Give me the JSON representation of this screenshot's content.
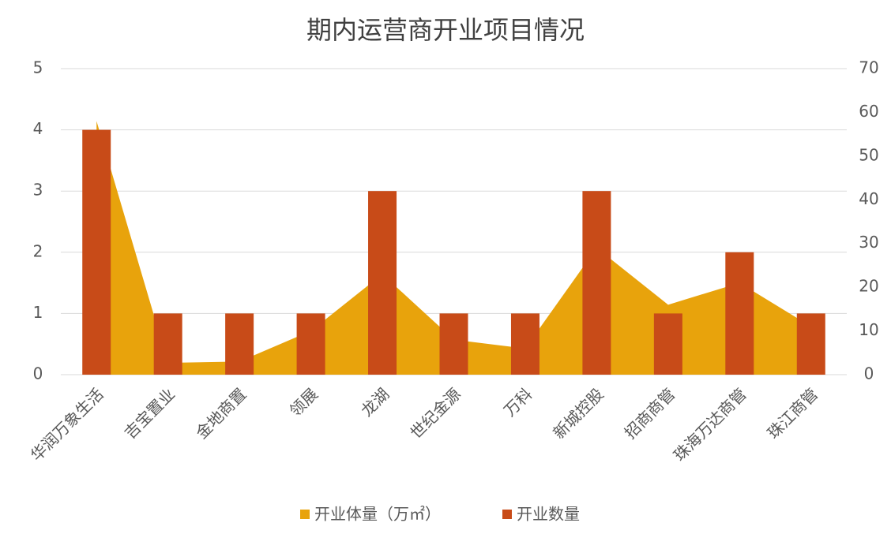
{
  "chart_data": {
    "type": "bar-area",
    "title": "期内运营商开业项目情况",
    "categories": [
      "华润万象生活",
      "吉宝置业",
      "金地商置",
      "领展",
      "龙湖",
      "世纪金源",
      "万科",
      "新城控股",
      "招商商管",
      "珠海万达商管",
      "珠江商管"
    ],
    "series": [
      {
        "name": "开业体量（万㎡）",
        "type": "area",
        "axis": "y2",
        "color": "#E8A30C",
        "values": [
          58,
          2.7,
          3,
          10,
          23,
          8,
          6,
          29,
          16,
          21,
          11
        ]
      },
      {
        "name": "开业数量",
        "type": "bar",
        "color": "#C84B18",
        "values": [
          4,
          1,
          1,
          1,
          3,
          1,
          1,
          3,
          1,
          2,
          1
        ]
      }
    ],
    "ylim": [
      0,
      5
    ],
    "yticks": [
      0,
      1,
      2,
      3,
      4,
      5
    ],
    "y2lim": [
      0,
      70
    ],
    "y2ticks": [
      0,
      10,
      20,
      30,
      40,
      50,
      60,
      70
    ],
    "grid": true,
    "legend": "bottom"
  }
}
